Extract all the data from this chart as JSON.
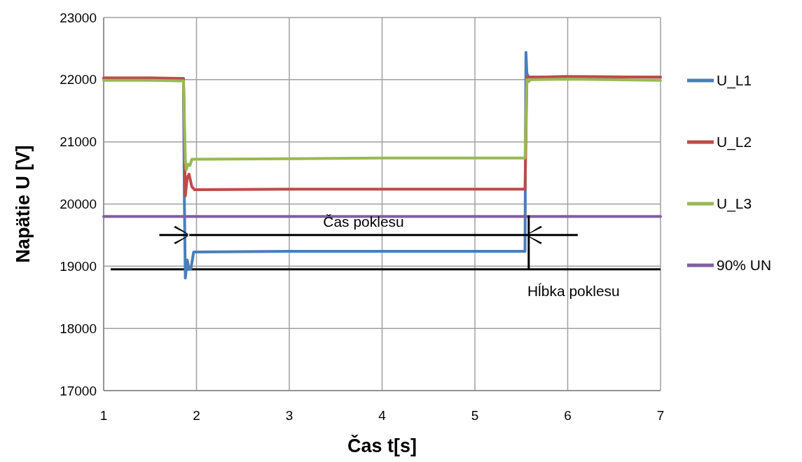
{
  "chart_data": {
    "type": "line",
    "xlabel": "Čas t[s]",
    "ylabel": "Napätie U [V]",
    "xlim": [
      1,
      7
    ],
    "ylim": [
      17000,
      23000
    ],
    "xticks": [
      1,
      2,
      3,
      4,
      5,
      6,
      7
    ],
    "yticks": [
      17000,
      18000,
      19000,
      20000,
      21000,
      22000,
      23000
    ],
    "grid": true,
    "legend": "right",
    "marker": "none",
    "line_style": "solid",
    "series": [
      {
        "name": "U_L1",
        "color": "#4a7ebb",
        "x": [
          1,
          1.5,
          1.86,
          1.87,
          1.88,
          1.9,
          1.92,
          1.94,
          1.97,
          2.0,
          3,
          4,
          5,
          5.54,
          5.55,
          5.56,
          5.58,
          6,
          7
        ],
        "values": [
          22020,
          22020,
          22010,
          20000,
          18810,
          19100,
          18950,
          18960,
          19230,
          19230,
          19240,
          19240,
          19240,
          19240,
          22440,
          22100,
          22040,
          22050,
          22040
        ]
      },
      {
        "name": "U_L2",
        "color": "#be4b48",
        "x": [
          1,
          1.5,
          1.86,
          1.88,
          1.9,
          1.92,
          1.95,
          1.98,
          3,
          4,
          5,
          5.54,
          5.56,
          6,
          7
        ],
        "values": [
          22030,
          22030,
          22020,
          20130,
          20420,
          20480,
          20280,
          20230,
          20240,
          20240,
          20240,
          20240,
          22040,
          22050,
          22040
        ]
      },
      {
        "name": "U_L3",
        "color": "#98b954",
        "x": [
          1,
          1.5,
          1.86,
          1.88,
          1.89,
          1.91,
          1.93,
          1.95,
          3,
          4,
          5,
          5.54,
          5.56,
          5.58,
          5.6,
          6,
          7
        ],
        "values": [
          21990,
          21990,
          21980,
          20700,
          20550,
          20640,
          20620,
          20720,
          20730,
          20740,
          20740,
          20740,
          22000,
          21970,
          22000,
          22010,
          21990
        ]
      },
      {
        "name": "90% UN",
        "color": "#7d60a0",
        "x": [
          1,
          7
        ],
        "values": [
          19800,
          19800
        ]
      }
    ],
    "ref_lines": [
      {
        "axis": "y",
        "value": 18950,
        "color": "#000000"
      }
    ],
    "annotations": [
      "Čas poklesu",
      {
        "text": "Hĺbka poklesu",
        "x": 5.58,
        "y": 18950
      }
    ]
  }
}
